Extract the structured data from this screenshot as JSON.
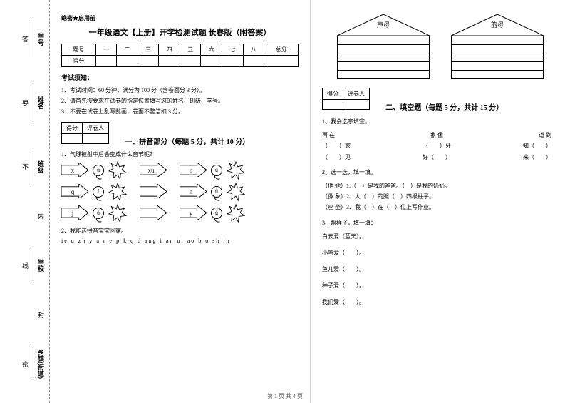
{
  "binding": {
    "items": [
      {
        "label": "学号",
        "hint": "答"
      },
      {
        "label": "姓名",
        "hint": "要"
      },
      {
        "label": "班级",
        "hint": "不"
      },
      {
        "label": "",
        "hint": "内"
      },
      {
        "label": "学校",
        "hint": "线"
      },
      {
        "label": "",
        "hint": "封"
      },
      {
        "label": "乡镇(街道)",
        "hint": "密"
      }
    ],
    "side": "题"
  },
  "secret": "绝密★启用前",
  "title": "一年级语文【上册】开学检测试题 长春版（附答案）",
  "score_table": {
    "headers": [
      "题号",
      "一",
      "二",
      "三",
      "四",
      "五",
      "六",
      "七",
      "八",
      "总分"
    ],
    "row2": "得分"
  },
  "exam_notice_title": "考试须知：",
  "rules": [
    "1、考试时间：60 分钟，满分为 100 分（含卷面分 3 分）。",
    "2、请首先按要求在试卷的指定位置填写您的姓名、班级、学号。",
    "3、不要在试卷上乱写乱画，卷面不整洁扣 3 分。"
  ],
  "mini": {
    "c1": "得分",
    "c2": "评卷人"
  },
  "section1": {
    "title": "一、拼音部分（每题 5 分，共计 10 分）",
    "q1": "1、气球被射中后会变成什么音节呢？",
    "rows": [
      {
        "a": "x",
        "b": "ǖ",
        "c": "xu",
        "d": "n",
        "e": "ü"
      },
      {
        "a": "q",
        "b": "í",
        "c": "",
        "d": "n",
        "e": "ǘ"
      },
      {
        "a": "j",
        "b": "ǚ",
        "c": "",
        "d": "y",
        "e": "ǜ"
      }
    ],
    "q2": "2、我能送拼音宝宝回家。",
    "pinyin": "ie  u  zh  y  a  r  e  p  k  q  d  ang  i  an  ui  ao  b  o  sh  in"
  },
  "houses": [
    {
      "label": "声母",
      "lines": 5
    },
    {
      "label": "韵母",
      "lines": 5
    }
  ],
  "section2": {
    "title": "二、填空题（每题 5 分，共计 15 分）",
    "q1": "1、我会选字填空。",
    "q1rows": [
      [
        "再  在",
        "象  像",
        "道  到"
      ],
      [
        "（　　）家",
        "（　　）牙",
        "知（　　）"
      ],
      [
        "（　　）见",
        "好（　　）",
        "来（　　）"
      ]
    ],
    "q2": "2、选一选，填一填。",
    "q2lines": [
      "（他  她）1.（　）是我的爸爸。（　）是我的奶奶。",
      "（像  象）2、大（　）的腿（　）四根柱子。",
      "（座  坐）3、我（　）在（　）位上写作业。"
    ],
    "q3": "3、照样子，填一填：",
    "q3lines": [
      "白云爱（蓝天）。",
      "小鸟爱（　　）。",
      "鱼儿爱（　　）。",
      "种子爱（　　）。",
      "我们爱（　　）。"
    ]
  },
  "footer": "第 1 页  共 4 页"
}
